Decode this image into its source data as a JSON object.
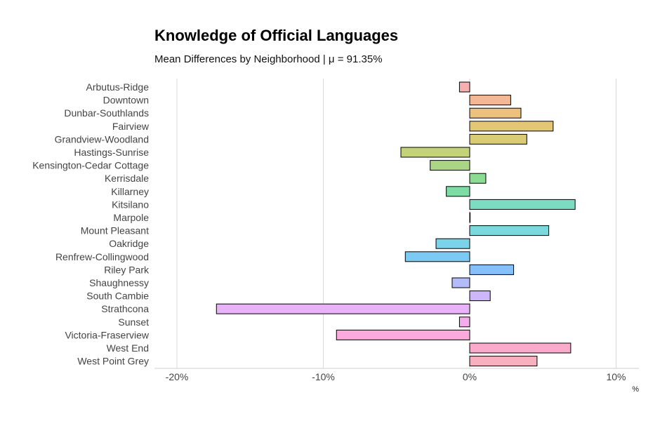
{
  "chart_data": {
    "type": "bar",
    "orientation": "horizontal",
    "title": "Knowledge of Official Languages",
    "subtitle": "Mean Differences by Neighborhood | μ = 91.35%",
    "xlabel": "%",
    "ylabel": "",
    "xlim": [
      -21.5,
      11.5
    ],
    "xticks": [
      -20,
      -10,
      0,
      10
    ],
    "xtick_labels": [
      "-20%",
      "-10%",
      "0%",
      "10%"
    ],
    "grid": "vertical",
    "legend": "none",
    "categories": [
      "Arbutus-Ridge",
      "Downtown",
      "Dunbar-Southlands",
      "Fairview",
      "Grandview-Woodland",
      "Hastings-Sunrise",
      "Kensington-Cedar Cottage",
      "Kerrisdale",
      "Killarney",
      "Kitsilano",
      "Marpole",
      "Mount Pleasant",
      "Oakridge",
      "Renfrew-Collingwood",
      "Riley Park",
      "Shaughnessy",
      "South Cambie",
      "Strathcona",
      "Sunset",
      "Victoria-Fraserview",
      "West End",
      "West Point Grey"
    ],
    "values": [
      -0.7,
      2.8,
      3.5,
      5.7,
      3.9,
      -4.7,
      -2.7,
      1.1,
      -1.6,
      7.2,
      0.0,
      5.4,
      -2.3,
      -4.4,
      3.0,
      -1.2,
      1.4,
      -17.3,
      -0.7,
      -9.1,
      6.9,
      4.6
    ],
    "colors": [
      "#f6b0b0",
      "#f4b896",
      "#edc17d",
      "#e4c774",
      "#d9cc74",
      "#c4d27a",
      "#aad584",
      "#8cdb94",
      "#7ddca4",
      "#7cdcc1",
      "#7adbd2",
      "#79d9dc",
      "#7bd3ea",
      "#7ccaf3",
      "#86c0fb",
      "#b4bbfb",
      "#cdb6fa",
      "#e8b2f7",
      "#f5acec",
      "#fbaadb",
      "#fbaacb",
      "#f8afbe"
    ]
  }
}
